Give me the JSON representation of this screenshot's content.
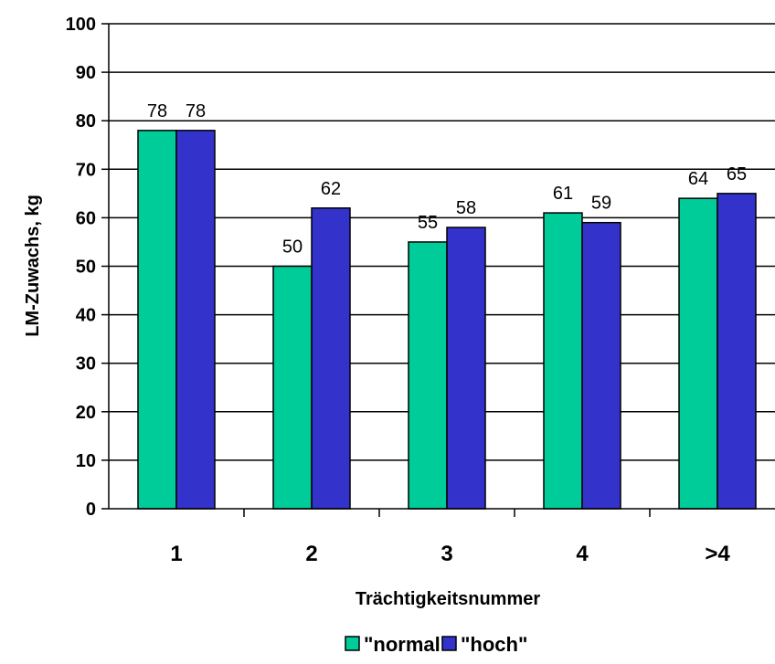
{
  "chart_data": {
    "type": "bar",
    "categories": [
      "1",
      "2",
      "3",
      "4",
      ">4"
    ],
    "series": [
      {
        "name": "\"normal\"",
        "values": [
          78,
          50,
          55,
          61,
          64
        ],
        "color": "#00CC99"
      },
      {
        "name": "\"hoch\"",
        "values": [
          78,
          62,
          58,
          59,
          65
        ],
        "color": "#3333CC"
      }
    ],
    "title": "",
    "xlabel": "Trächtigkeitsnummer",
    "ylabel": "LM-Zuwachs, kg",
    "ylim": [
      0,
      100
    ],
    "yticks": [
      0,
      10,
      20,
      30,
      40,
      50,
      60,
      70,
      80,
      90,
      100
    ],
    "grid": "horizontal",
    "data_labels": true,
    "legend_position": "bottom-center"
  }
}
